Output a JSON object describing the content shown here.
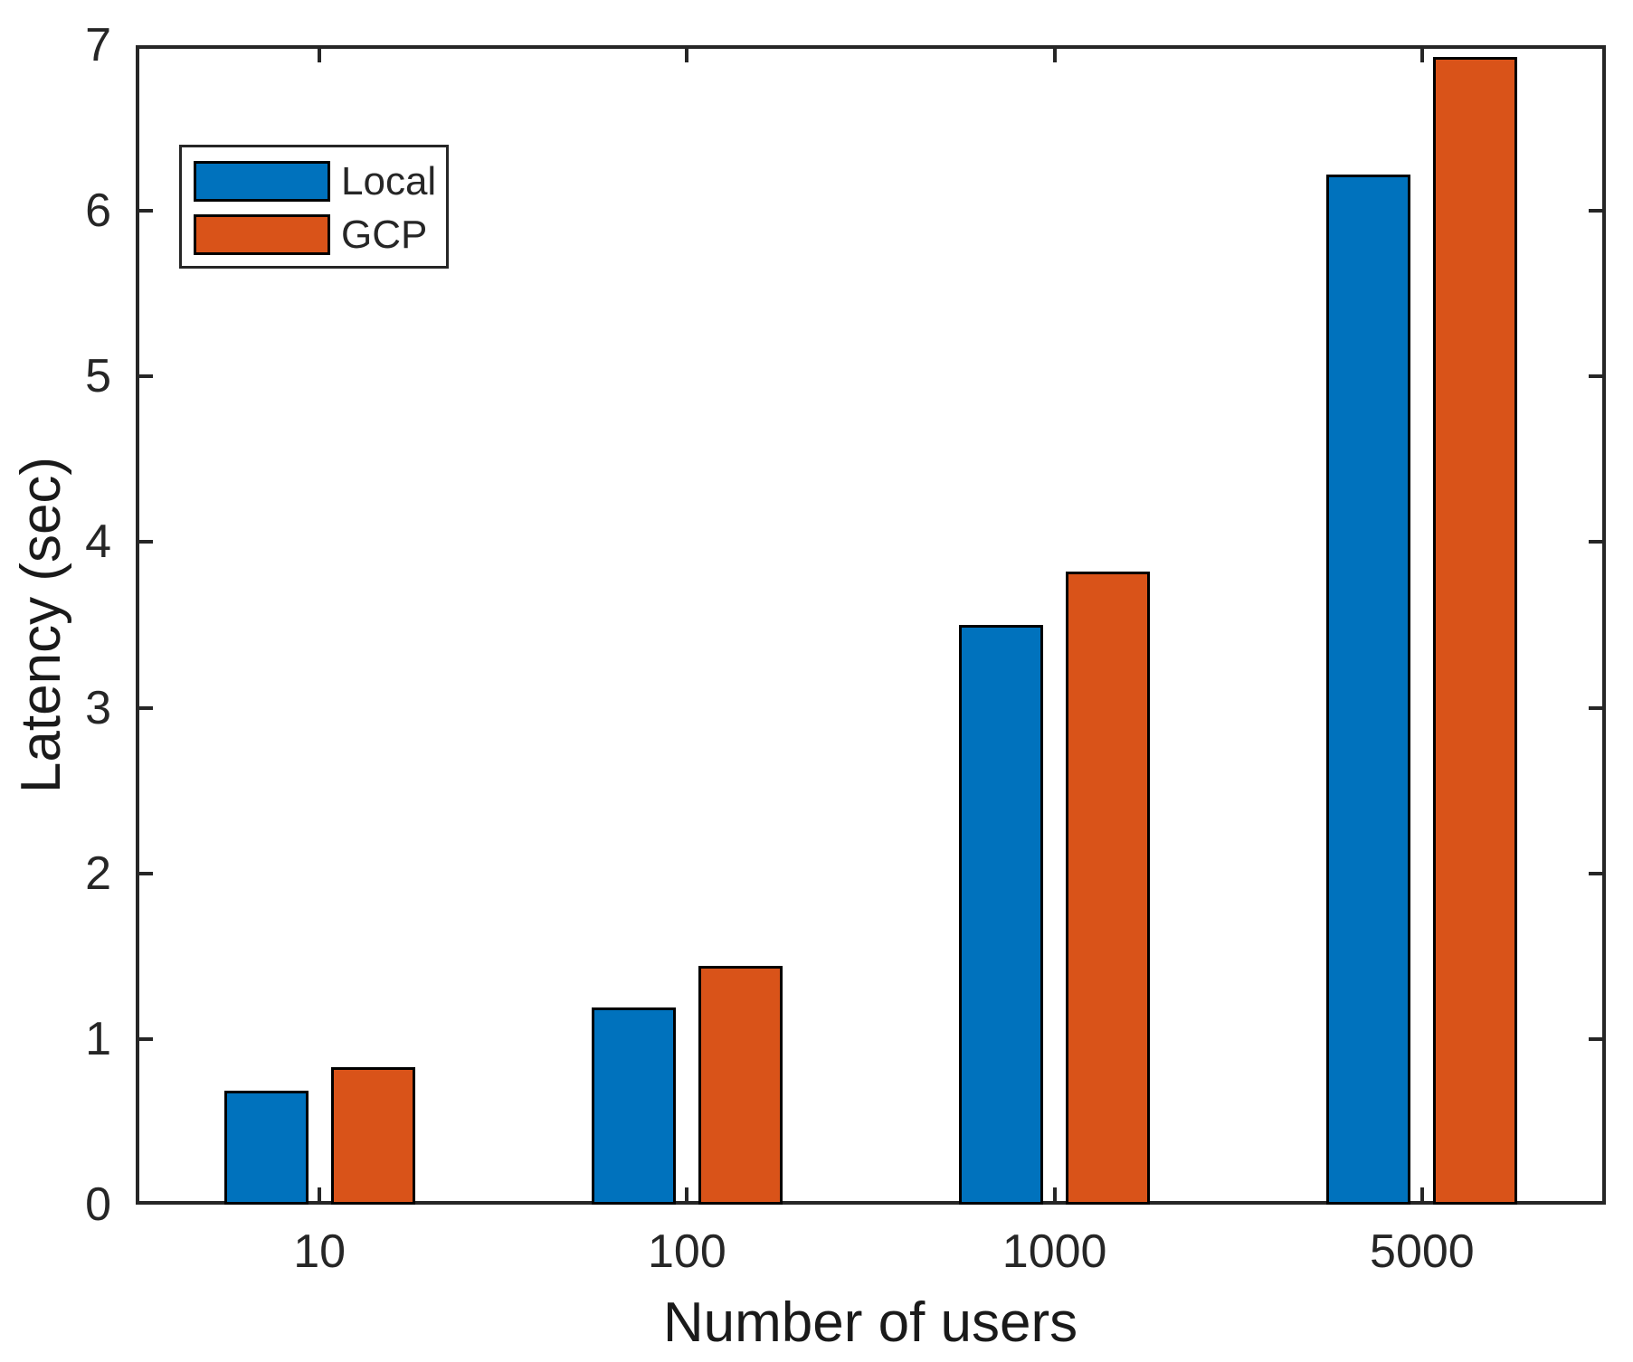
{
  "chart_data": {
    "type": "bar",
    "title": "",
    "xlabel": "Number of users",
    "ylabel": "Latency (sec)",
    "categories": [
      "10",
      "100",
      "1000",
      "5000"
    ],
    "series": [
      {
        "name": "Local",
        "color": "#0072BD",
        "values": [
          0.69,
          1.19,
          3.5,
          6.22
        ]
      },
      {
        "name": "GCP",
        "color": "#D95319",
        "values": [
          0.83,
          1.44,
          3.82,
          6.93
        ]
      }
    ],
    "ylim": [
      0,
      7
    ],
    "y_ticks": [
      "0",
      "1",
      "2",
      "3",
      "4",
      "5",
      "6",
      "7"
    ],
    "grid": false,
    "legend_position": "upper-left",
    "bar_edge_color": "#000000",
    "axis_color": "#262626"
  }
}
